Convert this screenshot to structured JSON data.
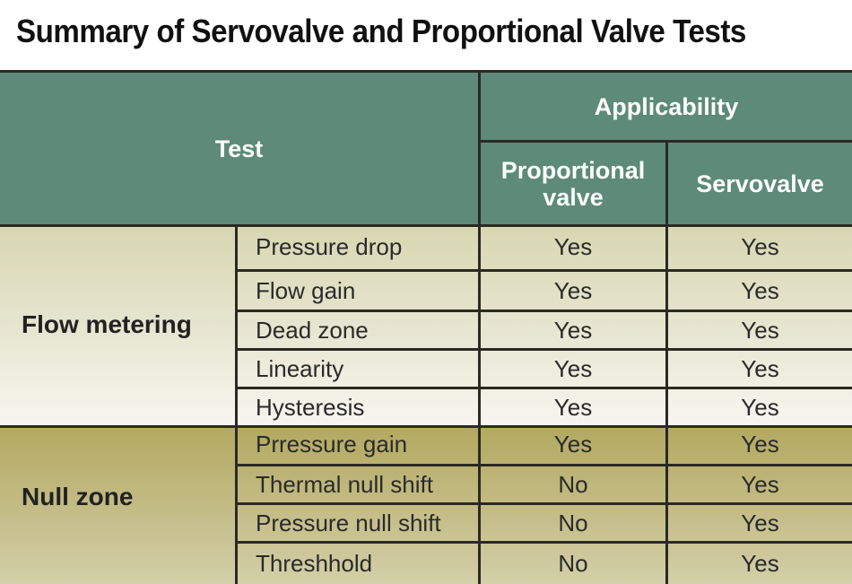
{
  "title": "Summary of Servovalve and Proportional Valve Tests",
  "header": {
    "test": "Test",
    "applicability": "Applicability",
    "proportional": "Proportional valve",
    "servovalve": "Servovalve"
  },
  "colors": {
    "header": "#5d8a79",
    "flow_group": "#e4e3c8",
    "null_group": "#b9af72"
  },
  "groups": [
    {
      "label": "Flow metering",
      "rows": [
        {
          "test": "Pressure drop",
          "proportional": "Yes",
          "servovalve": "Yes"
        },
        {
          "test": "Flow gain",
          "proportional": "Yes",
          "servovalve": "Yes"
        },
        {
          "test": "Dead zone",
          "proportional": "Yes",
          "servovalve": "Yes"
        },
        {
          "test": "Linearity",
          "proportional": "Yes",
          "servovalve": "Yes"
        },
        {
          "test": "Hysteresis",
          "proportional": "Yes",
          "servovalve": "Yes"
        }
      ]
    },
    {
      "label": "Null zone",
      "rows": [
        {
          "test": "Prressure gain",
          "proportional": "Yes",
          "servovalve": "Yes"
        },
        {
          "test": "Thermal null shift",
          "proportional": "No",
          "servovalve": "Yes"
        },
        {
          "test": "Pressure null shift",
          "proportional": "No",
          "servovalve": "Yes"
        },
        {
          "test": "Threshhold",
          "proportional": "No",
          "servovalve": "Yes"
        }
      ]
    }
  ]
}
